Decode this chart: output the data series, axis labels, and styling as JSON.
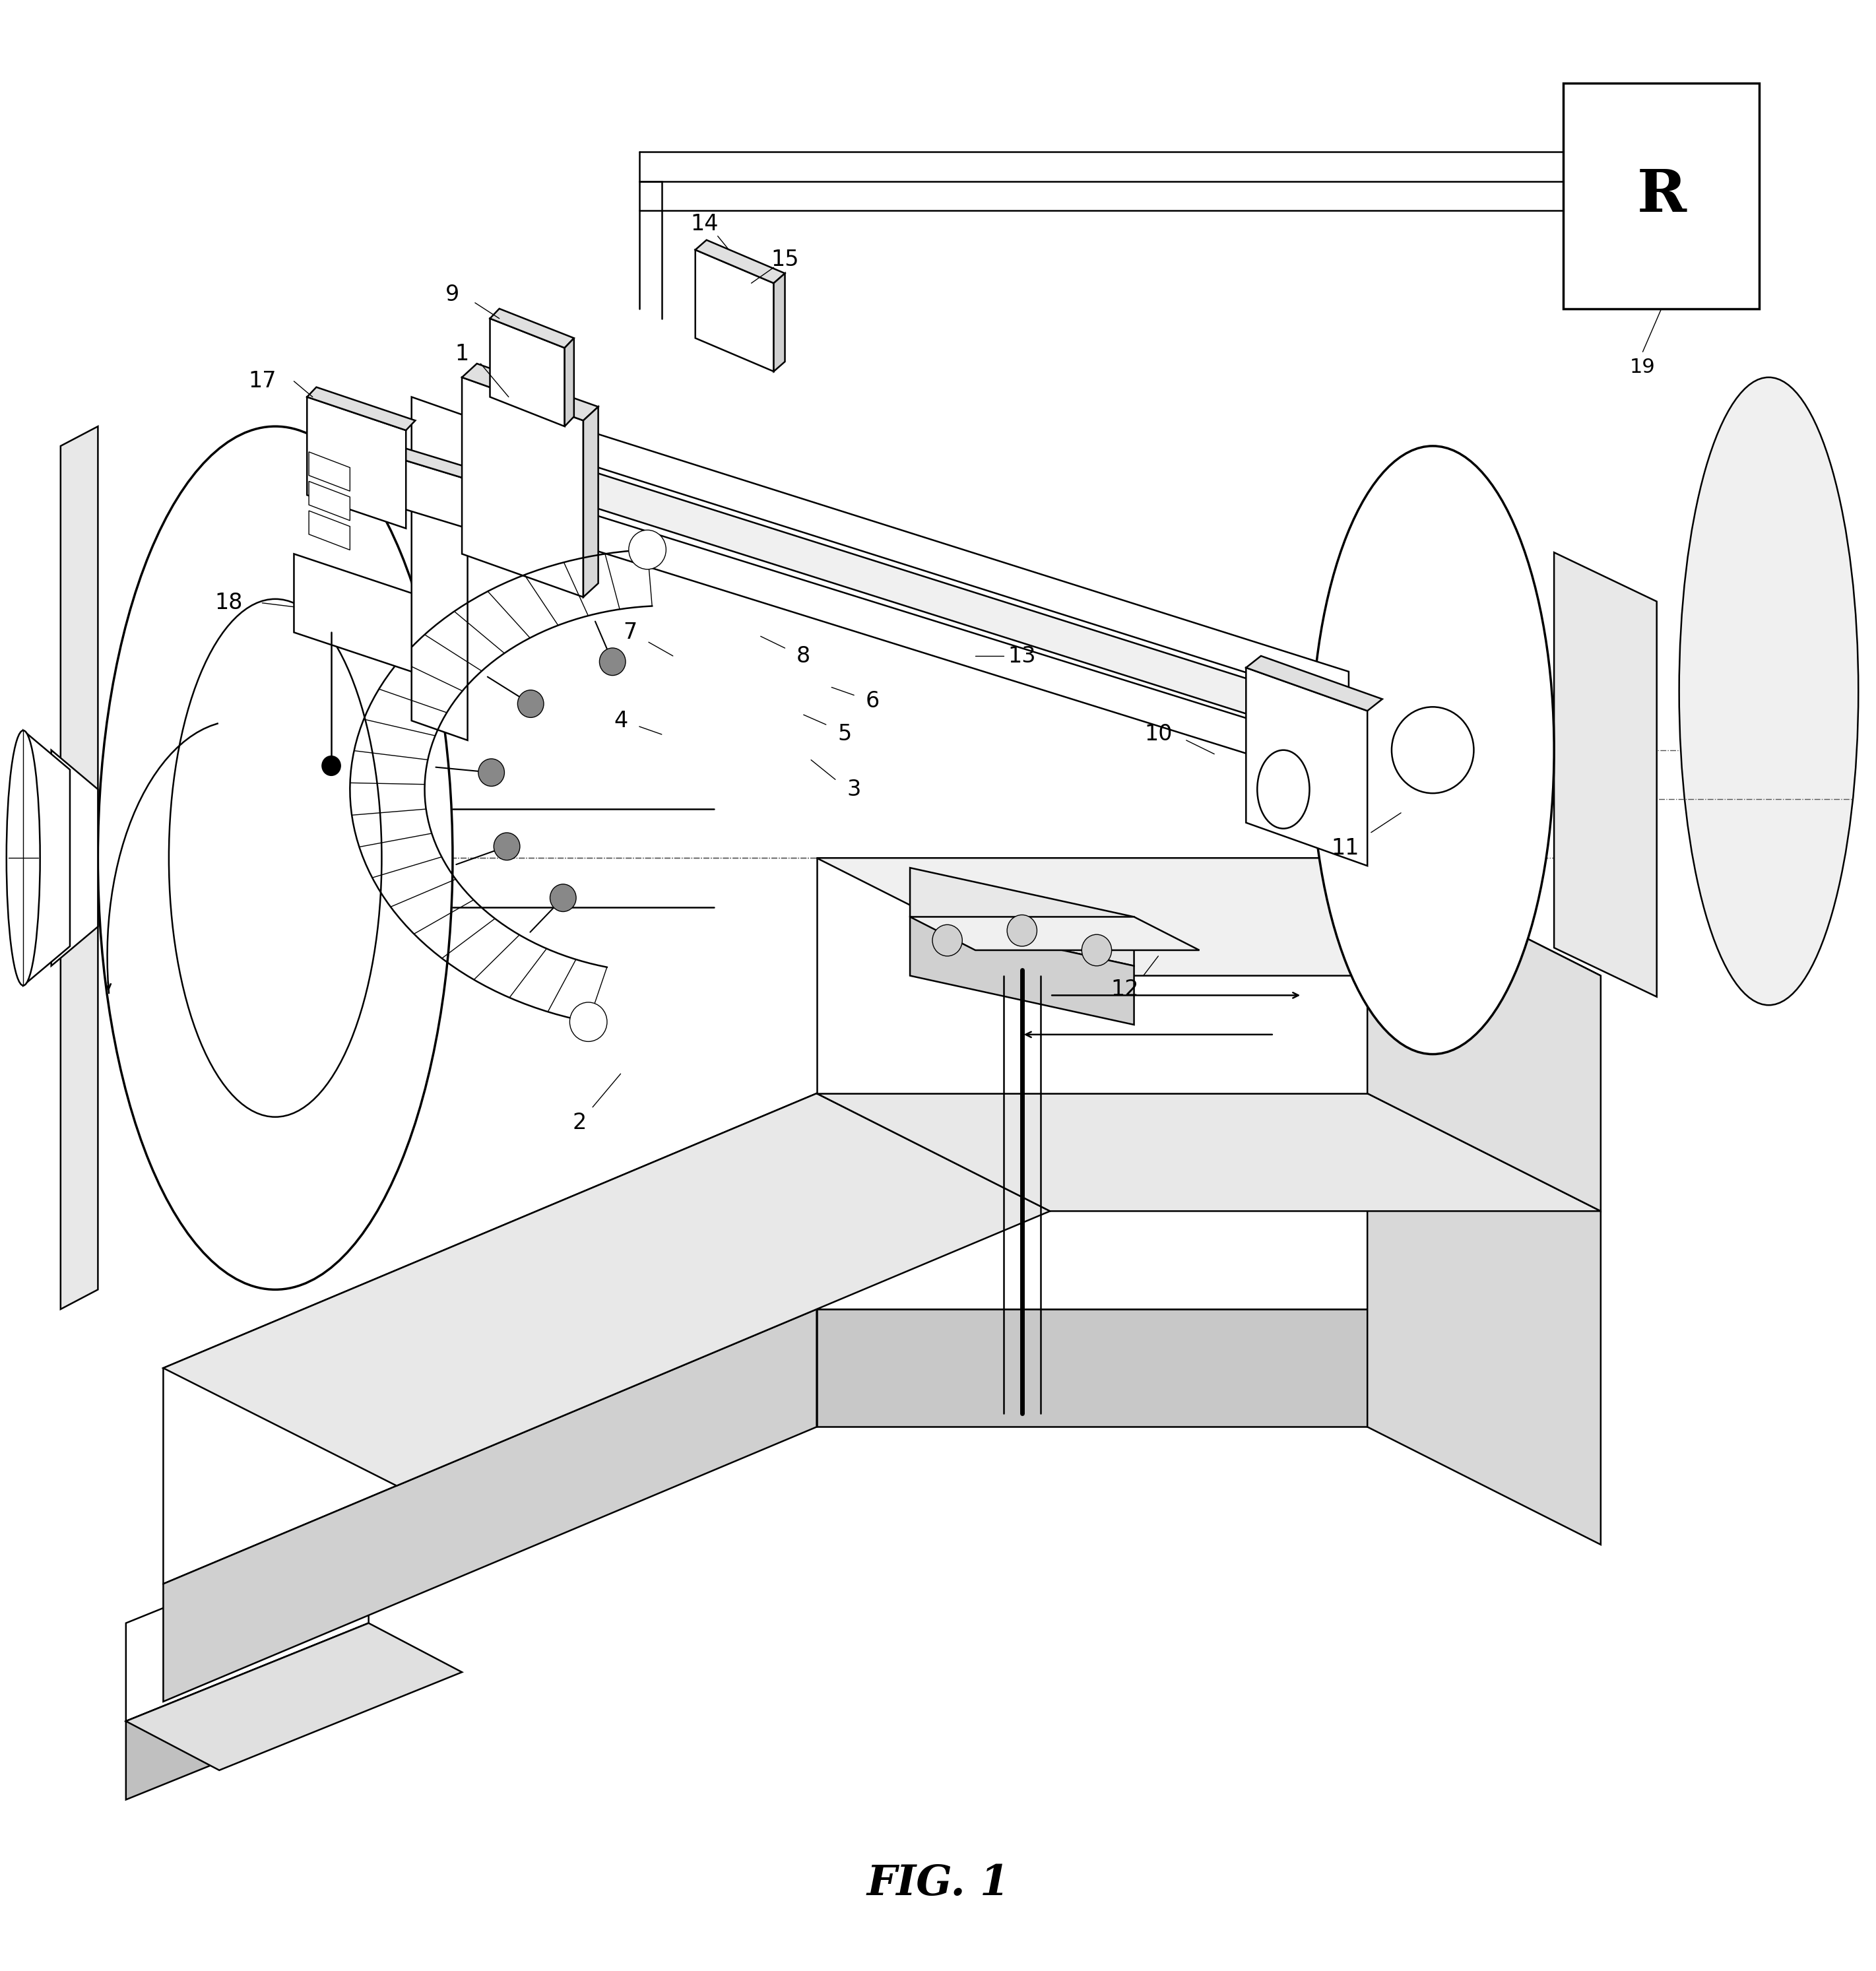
{
  "background_color": "#ffffff",
  "line_color": "#000000",
  "fig_width": 28.43,
  "fig_height": 29.87,
  "fig_label": "FIG. 1"
}
